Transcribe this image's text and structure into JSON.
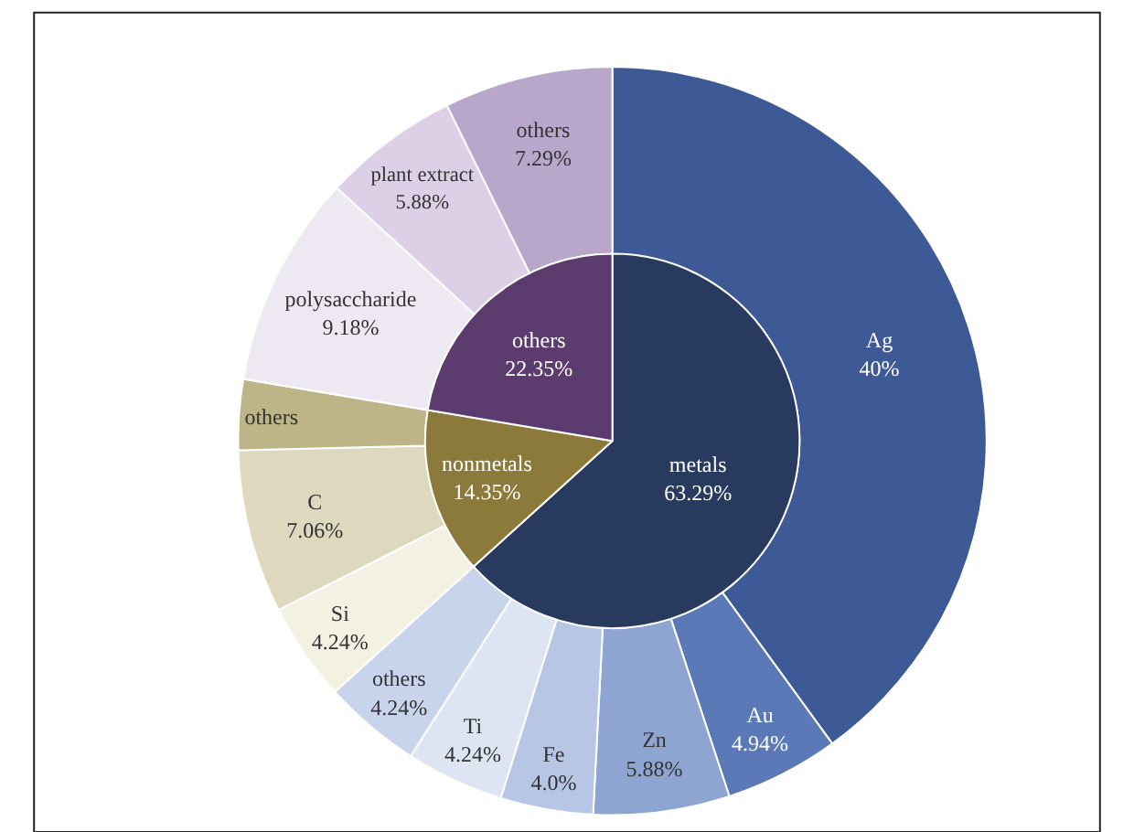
{
  "chart_data": [
    {
      "type": "pie",
      "categories": [
        "metals",
        "nonmetals",
        "others"
      ],
      "values": [
        63.29,
        14.35,
        22.35
      ],
      "value_labels": [
        "63.29%",
        "14.35%",
        "22.35%"
      ],
      "colors": [
        "#283a5e",
        "#8c7a3a",
        "#5c3c6e"
      ]
    },
    {
      "type": "donut",
      "categories": [
        "Ag",
        "Au",
        "Zn",
        "Fe",
        "Ti",
        "others",
        "Si",
        "C",
        "others",
        "polysaccharide",
        "plant extract",
        "others"
      ],
      "values": [
        40,
        4.94,
        5.88,
        4.0,
        4.24,
        4.24,
        4.24,
        7.06,
        3.05,
        9.18,
        5.88,
        7.29
      ],
      "value_labels": [
        "40%",
        "4.94%",
        "5.88%",
        "4.0%",
        "4.24%",
        "4.24%",
        "4.24%",
        "7.06%",
        null,
        "9.18%",
        "5.88%",
        "7.29%"
      ],
      "colors": [
        "#3d5a96",
        "#5a79b6",
        "#8ea5d2",
        "#b7c6e4",
        "#dde4f2",
        "#c8d4ec",
        "#f3f1e2",
        "#ddd8be",
        "#bdb487",
        "#eee8f2",
        "#dccfe6",
        "#b9a6cb"
      ]
    }
  ]
}
